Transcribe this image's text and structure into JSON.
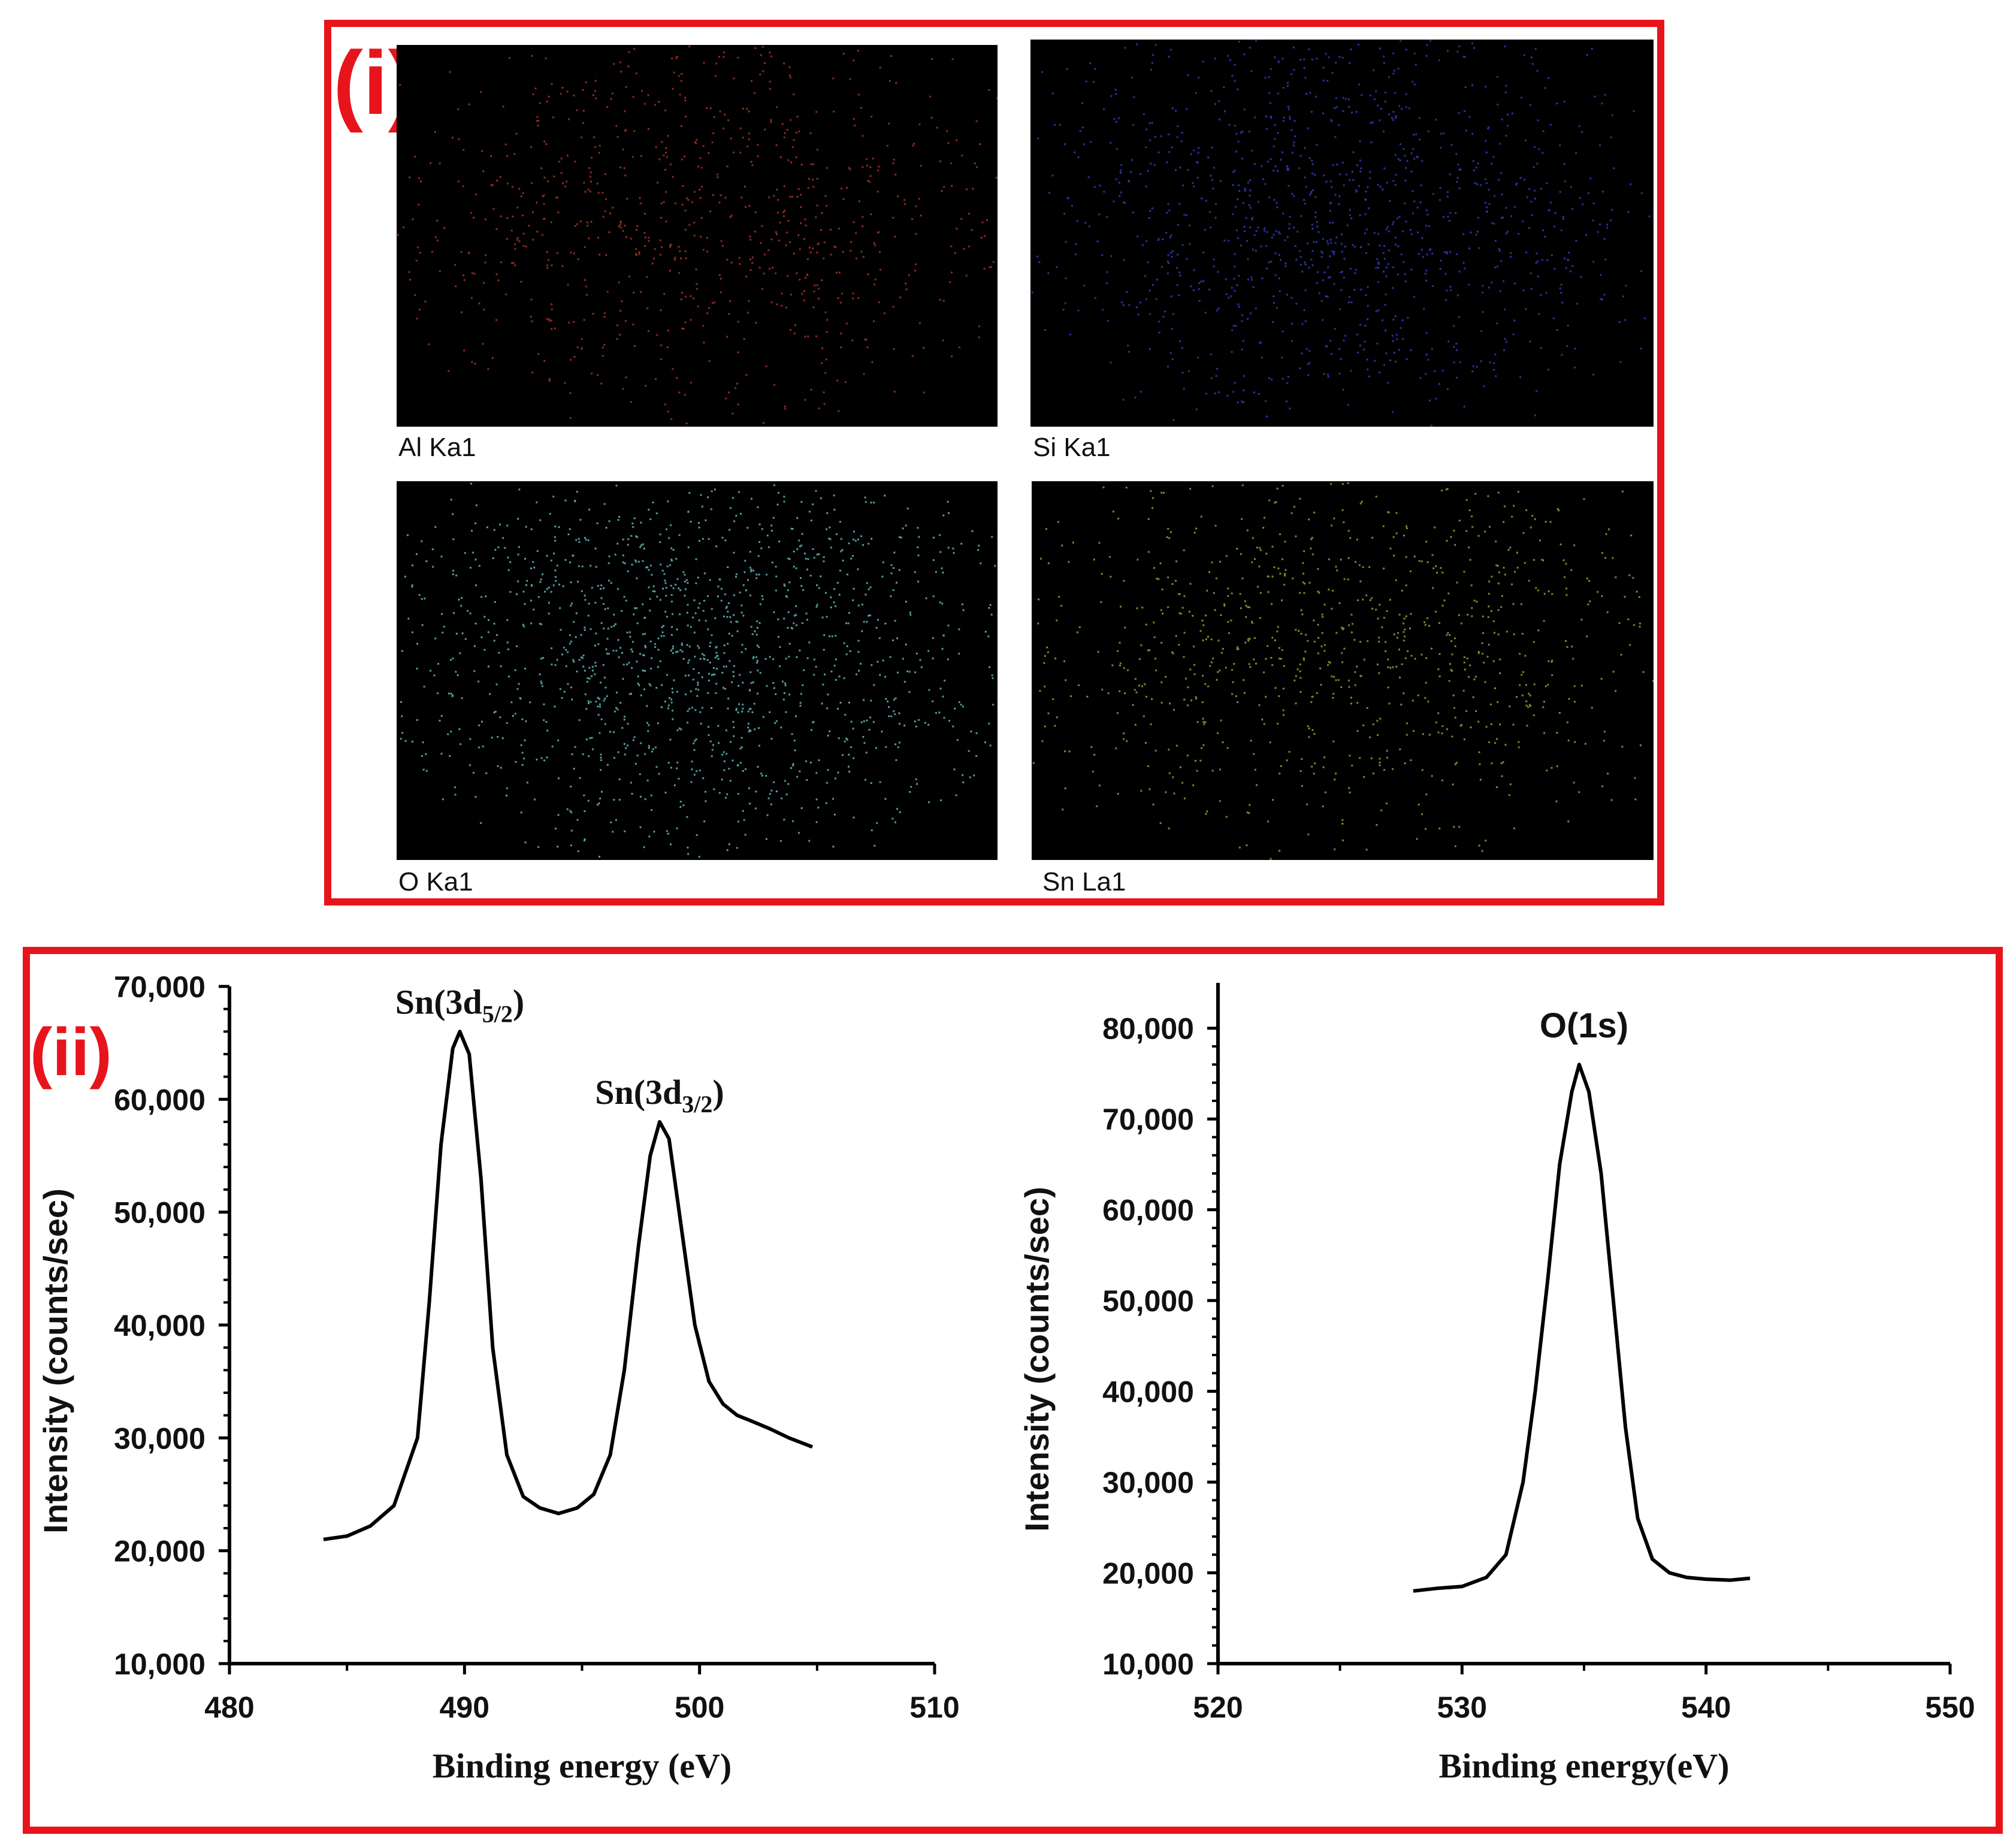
{
  "panel_i": {
    "label": "(i)",
    "maps": [
      {
        "caption": "Al Ka1",
        "color": "#c0392b"
      },
      {
        "caption": "Si Ka1",
        "color": "#3a45d8"
      },
      {
        "caption": "O Ka1",
        "color": "#6fd0d6"
      },
      {
        "caption": "Sn La1",
        "color": "#b5b03a"
      }
    ]
  },
  "panel_ii": {
    "label": "(ii)"
  },
  "chart_data": [
    {
      "type": "line",
      "xlabel": "Binding energy (eV)",
      "ylabel": "Intensity (counts/sec)",
      "xlim": [
        480,
        510
      ],
      "ylim": [
        10000,
        70000
      ],
      "xticks": [
        480,
        490,
        500,
        510
      ],
      "xtick_labels": [
        "480",
        "490",
        "500",
        "510"
      ],
      "yticks": [
        10000,
        20000,
        30000,
        40000,
        50000,
        60000,
        70000
      ],
      "ytick_labels": [
        "10,000",
        "20,000",
        "30,000",
        "40,000",
        "50,000",
        "60,000",
        "70,000"
      ],
      "annotations": [
        {
          "main": "Sn(3d",
          "sub": "5/2",
          "close": ")",
          "x": 489.8,
          "y": 66000
        },
        {
          "main": "Sn(3d",
          "sub": "3/2",
          "close": ")",
          "x": 498.3,
          "y": 58000
        }
      ],
      "series": [
        {
          "x": [
            484.0,
            485.0,
            486.0,
            487.0,
            488.0,
            488.5,
            489.0,
            489.5,
            489.8,
            490.2,
            490.7,
            491.2,
            491.8,
            492.5,
            493.2,
            494.0,
            494.8,
            495.5,
            496.2,
            496.8,
            497.4,
            497.9,
            498.3,
            498.7,
            499.2,
            499.8,
            500.4,
            501.0,
            501.6,
            502.2,
            503.0,
            503.8,
            504.8
          ],
          "y": [
            21000,
            21300,
            22200,
            24000,
            30000,
            42000,
            56000,
            64500,
            66000,
            64000,
            53000,
            38000,
            28500,
            24800,
            23800,
            23300,
            23800,
            25000,
            28500,
            36000,
            47000,
            55000,
            58000,
            56500,
            49000,
            40000,
            35000,
            33000,
            32000,
            31500,
            30800,
            30000,
            29200
          ]
        }
      ]
    },
    {
      "type": "line",
      "xlabel": "Binding energy(eV)",
      "ylabel": "Intensity (counts/sec)",
      "xlim": [
        520,
        550
      ],
      "ylim": [
        10000,
        85000
      ],
      "xticks": [
        520,
        530,
        540,
        550
      ],
      "xtick_labels": [
        "520",
        "530",
        "540",
        "550"
      ],
      "yticks": [
        10000,
        20000,
        30000,
        40000,
        50000,
        60000,
        70000,
        80000
      ],
      "ytick_labels": [
        "10,000",
        "20,000",
        "30,000",
        "40,000",
        "50,000",
        "60,000",
        "70,000",
        "80,000"
      ],
      "annotations": [
        {
          "main": "O(1s)",
          "sub": "",
          "close": "",
          "x": 535.0,
          "y": 77000
        }
      ],
      "series": [
        {
          "x": [
            528.0,
            529.0,
            530.0,
            531.0,
            531.8,
            532.5,
            533.0,
            533.5,
            534.0,
            534.5,
            534.8,
            535.2,
            535.7,
            536.2,
            536.7,
            537.2,
            537.8,
            538.5,
            539.2,
            540.0,
            541.0,
            541.8
          ],
          "y": [
            18000,
            18300,
            18500,
            19500,
            22000,
            30000,
            40000,
            52000,
            65000,
            73000,
            76000,
            73000,
            64000,
            50000,
            36000,
            26000,
            21500,
            20000,
            19500,
            19300,
            19200,
            19400
          ]
        }
      ]
    }
  ]
}
